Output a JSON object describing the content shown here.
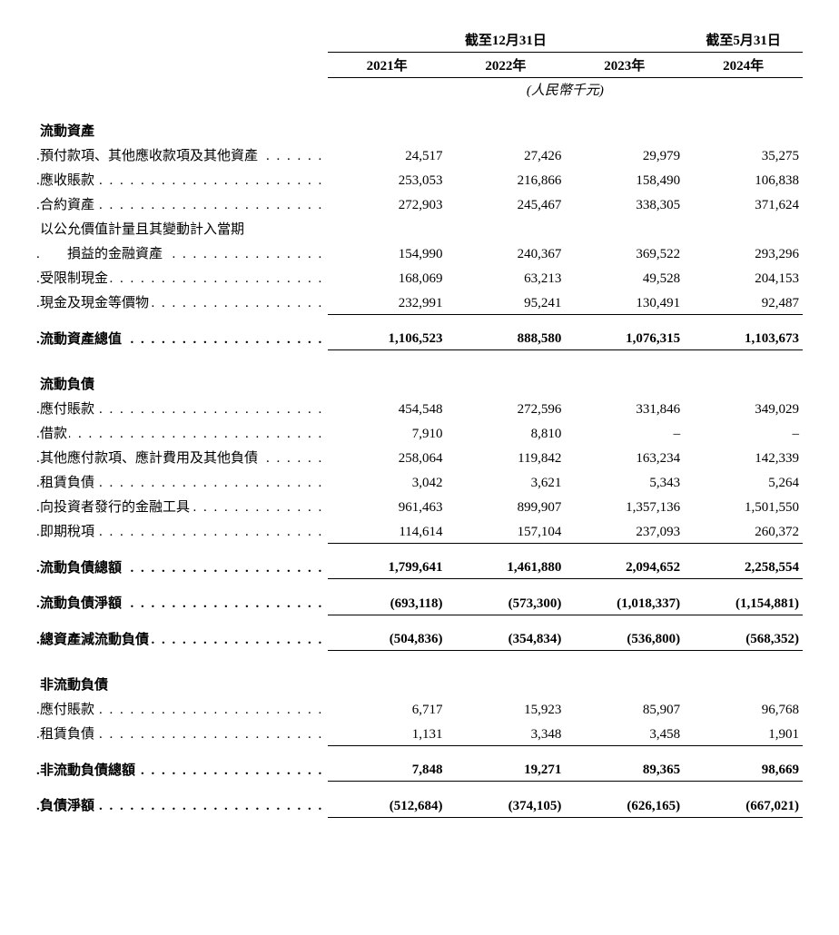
{
  "header": {
    "period1_title": "截至12月31日",
    "period2_title": "截至5月31日",
    "years": [
      "2021年",
      "2022年",
      "2023年",
      "2024年"
    ],
    "unit": "(人民幣千元)"
  },
  "sections": [
    {
      "title": "流動資產",
      "rows": [
        {
          "label": "預付款項、其他應收款項及其他資產",
          "v": [
            "24,517",
            "27,426",
            "29,979",
            "35,275"
          ]
        },
        {
          "label": "應收賬款",
          "v": [
            "253,053",
            "216,866",
            "158,490",
            "106,838"
          ]
        },
        {
          "label": "合約資產",
          "v": [
            "272,903",
            "245,467",
            "338,305",
            "371,624"
          ]
        },
        {
          "label": "以公允價值計量且其變動計入當期",
          "wrap_next": "損益的金融資產",
          "v": [
            "154,990",
            "240,367",
            "369,522",
            "293,296"
          ]
        },
        {
          "label": "受限制現金",
          "v": [
            "168,069",
            "63,213",
            "49,528",
            "204,153"
          ]
        },
        {
          "label": "現金及現金等價物",
          "v": [
            "232,991",
            "95,241",
            "130,491",
            "92,487"
          ],
          "underline_after": true
        }
      ],
      "totals": [
        {
          "label": "流動資產總值",
          "v": [
            "1,106,523",
            "888,580",
            "1,076,315",
            "1,103,673"
          ],
          "bold": true,
          "underline_after": true
        }
      ]
    },
    {
      "title": "流動負債",
      "rows": [
        {
          "label": "應付賬款",
          "v": [
            "454,548",
            "272,596",
            "331,846",
            "349,029"
          ]
        },
        {
          "label": "借款",
          "v": [
            "7,910",
            "8,810",
            "–",
            "–"
          ]
        },
        {
          "label": "其他應付款項、應計費用及其他負債",
          "v": [
            "258,064",
            "119,842",
            "163,234",
            "142,339"
          ]
        },
        {
          "label": "租賃負債",
          "v": [
            "3,042",
            "3,621",
            "5,343",
            "5,264"
          ]
        },
        {
          "label": "向投資者發行的金融工具",
          "v": [
            "961,463",
            "899,907",
            "1,357,136",
            "1,501,550"
          ]
        },
        {
          "label": "即期稅項",
          "v": [
            "114,614",
            "157,104",
            "237,093",
            "260,372"
          ],
          "underline_after": true
        }
      ],
      "totals": [
        {
          "label": "流動負債總額",
          "v": [
            "1,799,641",
            "1,461,880",
            "2,094,652",
            "2,258,554"
          ],
          "bold": true,
          "underline_after": true
        },
        {
          "label": "流動負債淨額",
          "v": [
            "(693,118)",
            "(573,300)",
            "(1,018,337)",
            "(1,154,881)"
          ],
          "bold": true,
          "underline_after": true
        },
        {
          "label": "總資產減流動負債",
          "v": [
            "(504,836)",
            "(354,834)",
            "(536,800)",
            "(568,352)"
          ],
          "bold": true,
          "underline_after": true
        }
      ]
    },
    {
      "title": "非流動負債",
      "rows": [
        {
          "label": "應付賬款",
          "v": [
            "6,717",
            "15,923",
            "85,907",
            "96,768"
          ]
        },
        {
          "label": "租賃負債",
          "v": [
            "1,131",
            "3,348",
            "3,458",
            "1,901"
          ],
          "underline_after": true
        }
      ],
      "totals": [
        {
          "label": "非流動負債總額",
          "v": [
            "7,848",
            "19,271",
            "89,365",
            "98,669"
          ],
          "bold": true,
          "underline_after": true
        },
        {
          "label": "負債淨額",
          "v": [
            "(512,684)",
            "(374,105)",
            "(626,165)",
            "(667,021)"
          ],
          "bold": true,
          "underline_after": true
        }
      ]
    }
  ],
  "style": {
    "font_family": "Times New Roman / SimSun",
    "body_fontsize_pt": 11,
    "bold_weight": 700,
    "text_color": "#000000",
    "background_color": "#ffffff",
    "rule_color": "#000000",
    "col_widths_pct": [
      38,
      15.5,
      15.5,
      15.5,
      15.5
    ],
    "num_align": "right",
    "label_align": "left"
  }
}
